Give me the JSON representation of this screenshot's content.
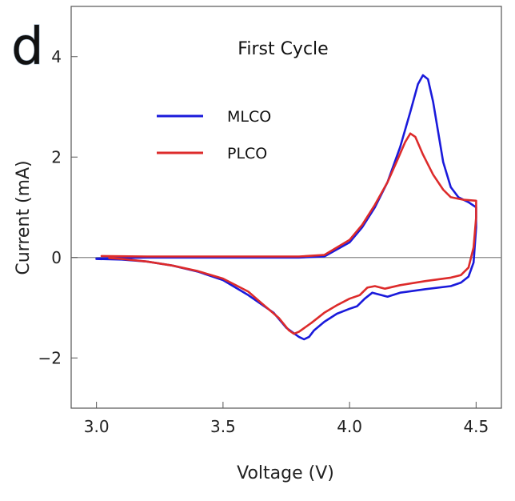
{
  "chart_data": {
    "type": "line",
    "panel_label": "d",
    "title": "First Cycle",
    "xlabel": "Voltage (V)",
    "ylabel": "Current (mA)",
    "xlim": [
      2.9,
      4.6
    ],
    "ylim": [
      -3.0,
      5.0
    ],
    "xticks": [
      {
        "value": 3.0,
        "label": "3.0"
      },
      {
        "value": 3.5,
        "label": "3.5"
      },
      {
        "value": 4.0,
        "label": "4.0"
      },
      {
        "value": 4.5,
        "label": "4.5"
      }
    ],
    "yticks": [
      {
        "value": -2,
        "label": "−2"
      },
      {
        "value": 0,
        "label": "0"
      },
      {
        "value": 2,
        "label": "2"
      },
      {
        "value": 4,
        "label": "4"
      }
    ],
    "zero_line": true,
    "grid": false,
    "legend_position": "upper-left",
    "series": [
      {
        "name": "MLCO",
        "color": "#1a1adb",
        "points": [
          [
            3.0,
            -0.02
          ],
          [
            3.2,
            0.0
          ],
          [
            3.4,
            0.0
          ],
          [
            3.6,
            0.0
          ],
          [
            3.8,
            0.0
          ],
          [
            3.9,
            0.02
          ],
          [
            4.0,
            0.3
          ],
          [
            4.05,
            0.6
          ],
          [
            4.1,
            1.0
          ],
          [
            4.15,
            1.5
          ],
          [
            4.2,
            2.2
          ],
          [
            4.24,
            2.9
          ],
          [
            4.27,
            3.45
          ],
          [
            4.29,
            3.63
          ],
          [
            4.31,
            3.55
          ],
          [
            4.33,
            3.1
          ],
          [
            4.35,
            2.5
          ],
          [
            4.37,
            1.9
          ],
          [
            4.4,
            1.4
          ],
          [
            4.43,
            1.2
          ],
          [
            4.47,
            1.1
          ],
          [
            4.5,
            1.0
          ],
          [
            4.5,
            0.6
          ],
          [
            4.49,
            -0.1
          ],
          [
            4.47,
            -0.38
          ],
          [
            4.44,
            -0.5
          ],
          [
            4.4,
            -0.57
          ],
          [
            4.3,
            -0.63
          ],
          [
            4.2,
            -0.7
          ],
          [
            4.15,
            -0.78
          ],
          [
            4.12,
            -0.74
          ],
          [
            4.09,
            -0.7
          ],
          [
            4.06,
            -0.82
          ],
          [
            4.03,
            -0.97
          ],
          [
            4.0,
            -1.02
          ],
          [
            3.95,
            -1.12
          ],
          [
            3.9,
            -1.28
          ],
          [
            3.86,
            -1.45
          ],
          [
            3.84,
            -1.58
          ],
          [
            3.82,
            -1.63
          ],
          [
            3.8,
            -1.58
          ],
          [
            3.75,
            -1.4
          ],
          [
            3.7,
            -1.1
          ],
          [
            3.6,
            -0.75
          ],
          [
            3.5,
            -0.45
          ],
          [
            3.4,
            -0.28
          ],
          [
            3.3,
            -0.16
          ],
          [
            3.2,
            -0.08
          ],
          [
            3.1,
            -0.04
          ],
          [
            3.0,
            -0.03
          ]
        ]
      },
      {
        "name": "PLCO",
        "color": "#dd2b2b",
        "points": [
          [
            3.02,
            0.03
          ],
          [
            3.2,
            0.02
          ],
          [
            3.4,
            0.02
          ],
          [
            3.6,
            0.02
          ],
          [
            3.8,
            0.02
          ],
          [
            3.9,
            0.05
          ],
          [
            4.0,
            0.35
          ],
          [
            4.05,
            0.65
          ],
          [
            4.1,
            1.05
          ],
          [
            4.15,
            1.5
          ],
          [
            4.19,
            1.95
          ],
          [
            4.22,
            2.3
          ],
          [
            4.24,
            2.47
          ],
          [
            4.26,
            2.4
          ],
          [
            4.29,
            2.05
          ],
          [
            4.33,
            1.65
          ],
          [
            4.37,
            1.35
          ],
          [
            4.4,
            1.2
          ],
          [
            4.45,
            1.15
          ],
          [
            4.5,
            1.13
          ],
          [
            4.5,
            0.8
          ],
          [
            4.49,
            0.2
          ],
          [
            4.47,
            -0.2
          ],
          [
            4.44,
            -0.35
          ],
          [
            4.4,
            -0.4
          ],
          [
            4.3,
            -0.47
          ],
          [
            4.2,
            -0.55
          ],
          [
            4.14,
            -0.62
          ],
          [
            4.1,
            -0.57
          ],
          [
            4.07,
            -0.6
          ],
          [
            4.04,
            -0.75
          ],
          [
            4.0,
            -0.82
          ],
          [
            3.95,
            -0.95
          ],
          [
            3.9,
            -1.1
          ],
          [
            3.85,
            -1.3
          ],
          [
            3.8,
            -1.48
          ],
          [
            3.78,
            -1.52
          ],
          [
            3.76,
            -1.45
          ],
          [
            3.72,
            -1.2
          ],
          [
            3.65,
            -0.9
          ],
          [
            3.6,
            -0.68
          ],
          [
            3.5,
            -0.42
          ],
          [
            3.4,
            -0.27
          ],
          [
            3.3,
            -0.16
          ],
          [
            3.2,
            -0.08
          ],
          [
            3.1,
            -0.03
          ],
          [
            3.05,
            -0.01
          ]
        ]
      }
    ]
  }
}
